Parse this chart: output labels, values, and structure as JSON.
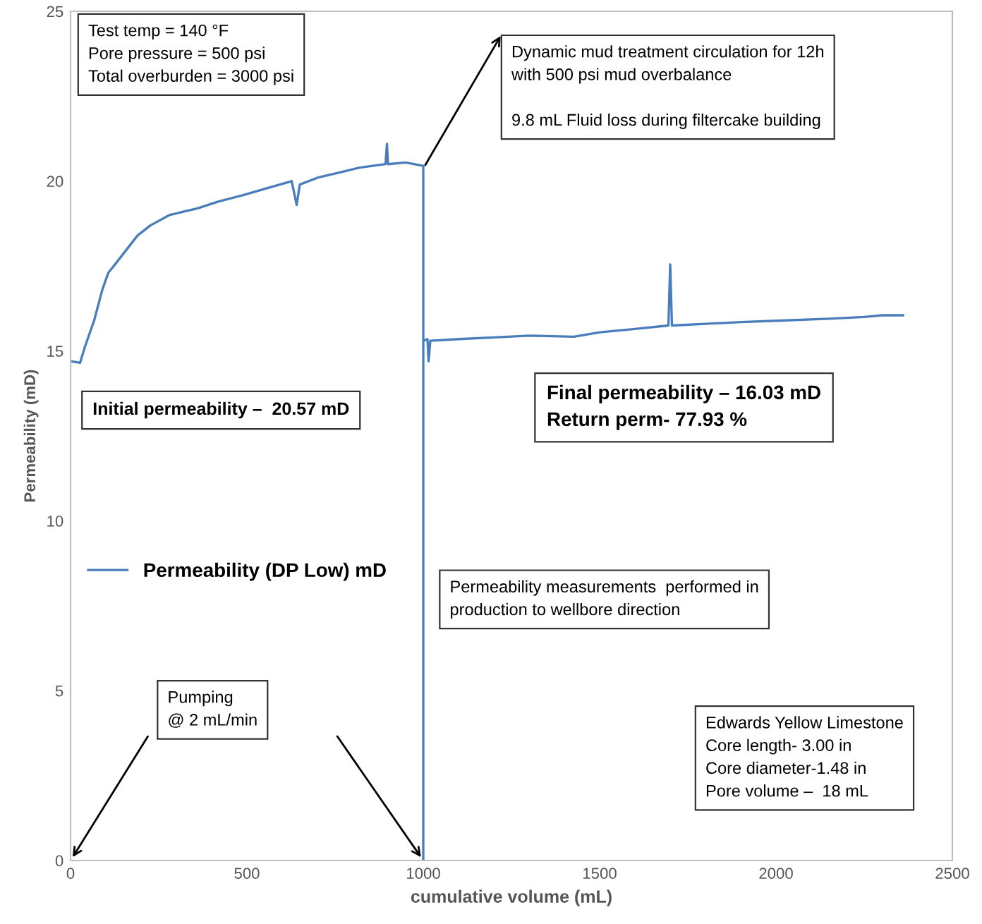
{
  "chart_data": {
    "type": "line",
    "xlabel": "cumulative volume (mL)",
    "ylabel": "Permeability (mD)",
    "xlim": [
      0,
      2500
    ],
    "ylim": [
      0,
      25
    ],
    "xticks": [
      0,
      500,
      1000,
      1500,
      2000,
      2500
    ],
    "yticks": [
      0,
      5,
      10,
      15,
      20,
      25
    ],
    "grid": false,
    "legend": "center left",
    "marker": "none",
    "line_style": "solid",
    "series": [
      {
        "name": "Permeability (DP Low) mD",
        "color": "#4a7ebb",
        "x": [
          0,
          27,
          40,
          67,
          90,
          107,
          130,
          160,
          190,
          227,
          280,
          360,
          420,
          493,
          560,
          627,
          641,
          650,
          700,
          760,
          820,
          893,
          897,
          900,
          950,
          1000,
          1000,
          1000,
          1012,
          1015,
          1020,
          1100,
          1200,
          1300,
          1427,
          1500,
          1600,
          1695,
          1700,
          1705,
          1800,
          1900,
          2027,
          2150,
          2250,
          2300,
          2360
        ],
        "values": [
          14.7,
          14.65,
          15.1,
          15.9,
          16.8,
          17.3,
          17.6,
          18.0,
          18.4,
          18.7,
          19.0,
          19.2,
          19.4,
          19.6,
          19.8,
          20.0,
          19.3,
          19.9,
          20.1,
          20.25,
          20.4,
          20.5,
          21.1,
          20.5,
          20.55,
          20.45,
          0,
          15.3,
          15.35,
          14.7,
          15.3,
          15.35,
          15.4,
          15.45,
          15.42,
          15.55,
          15.65,
          15.75,
          17.55,
          15.75,
          15.8,
          15.85,
          15.9,
          15.95,
          16.0,
          16.05,
          16.05
        ]
      }
    ],
    "annotations": [
      "Test temp = 140 °F\nPore pressure = 500 psi\nTotal overburden = 3000 psi",
      "Dynamic mud treatment circulation for 12h\nwith 500 psi mud overbalance\n\n9.8 mL Fluid loss during filtercake building",
      "Initial permeability –  20.57 mD",
      "Final permeability – 16.03 mD\nReturn perm- 77.93 %",
      "Permeability measurements  performed in\nproduction to wellbore direction",
      "Pumping\n@ 2 mL/min",
      "Edwards Yellow Limestone\nCore length- 3.00 in\nCore diameter-1.48 in\nPore volume –  18 mL"
    ]
  }
}
